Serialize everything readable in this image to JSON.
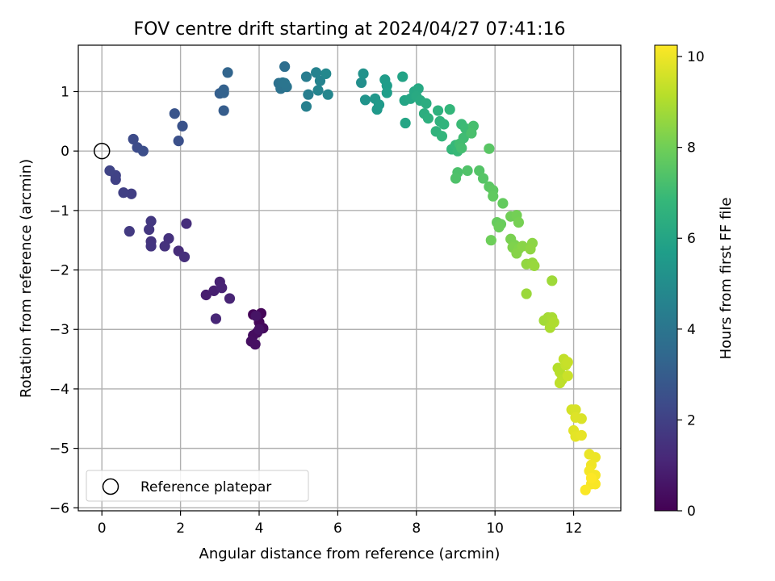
{
  "chart_data": {
    "type": "scatter",
    "title": "FOV centre drift starting at 2024/04/27 07:41:16",
    "xlabel": "Angular distance from reference (arcmin)",
    "ylabel": "Rotation from reference (arcmin)",
    "xlim": [
      -0.6,
      13.2
    ],
    "ylim": [
      -6.05,
      1.78
    ],
    "xticks": [
      0,
      2,
      4,
      6,
      8,
      10,
      12
    ],
    "yticks": [
      -6,
      -5,
      -4,
      -3,
      -2,
      -1,
      0,
      1
    ],
    "grid": true,
    "legend": {
      "position": "lower-left",
      "entries": [
        {
          "label": "Reference platepar",
          "marker": "open-circle"
        }
      ]
    },
    "reference_point": {
      "x": 0,
      "y": 0
    },
    "colorbar": {
      "label": "Hours from first FF file",
      "colormap": "viridis",
      "range": [
        0,
        10.25
      ],
      "ticks": [
        0,
        2,
        4,
        6,
        8,
        10
      ]
    },
    "colormap_stops": [
      "#440154",
      "#482878",
      "#3e4989",
      "#31688e",
      "#26828e",
      "#1f9e89",
      "#35b779",
      "#6ece58",
      "#b5de2b",
      "#fde725"
    ],
    "points": [
      [
        3.85,
        -2.75,
        0.1
      ],
      [
        4.05,
        -2.73,
        0.15
      ],
      [
        4.0,
        -2.88,
        0.2
      ],
      [
        4.1,
        -2.98,
        0.25
      ],
      [
        3.95,
        -3.05,
        0.3
      ],
      [
        3.85,
        -3.1,
        0.35
      ],
      [
        3.8,
        -3.2,
        0.4
      ],
      [
        3.9,
        -3.25,
        0.45
      ],
      [
        4.0,
        -3.0,
        0.5
      ],
      [
        3.92,
        -2.77,
        0.55
      ],
      [
        2.65,
        -2.42,
        0.85
      ],
      [
        2.85,
        -2.35,
        0.9
      ],
      [
        3.0,
        -2.2,
        0.95
      ],
      [
        3.05,
        -2.3,
        1.0
      ],
      [
        3.25,
        -2.48,
        1.05
      ],
      [
        2.9,
        -2.82,
        1.1
      ],
      [
        1.95,
        -1.68,
        1.3
      ],
      [
        2.15,
        -1.22,
        1.35
      ],
      [
        2.1,
        -1.78,
        1.4
      ],
      [
        1.7,
        -1.47,
        1.45
      ],
      [
        1.6,
        -1.6,
        1.5
      ],
      [
        1.25,
        -1.52,
        1.55
      ],
      [
        1.25,
        -1.6,
        1.6
      ],
      [
        1.2,
        -1.32,
        1.65
      ],
      [
        1.25,
        -1.18,
        1.7
      ],
      [
        0.7,
        -1.35,
        1.75
      ],
      [
        0.75,
        -0.72,
        1.9
      ],
      [
        0.55,
        -0.7,
        1.95
      ],
      [
        0.35,
        -0.48,
        2.0
      ],
      [
        0.35,
        -0.41,
        2.05
      ],
      [
        0.2,
        -0.33,
        2.1
      ],
      [
        0.8,
        0.2,
        2.35
      ],
      [
        0.9,
        0.06,
        2.4
      ],
      [
        1.05,
        0.0,
        2.45
      ],
      [
        1.95,
        0.17,
        2.55
      ],
      [
        2.05,
        0.42,
        2.6
      ],
      [
        1.85,
        0.63,
        2.7
      ],
      [
        3.1,
        0.68,
        3.0
      ],
      [
        3.0,
        0.97,
        3.1
      ],
      [
        3.1,
        1.03,
        3.15
      ],
      [
        3.1,
        0.98,
        3.2
      ],
      [
        3.2,
        1.32,
        3.3
      ],
      [
        4.65,
        1.42,
        3.7
      ],
      [
        4.5,
        1.14,
        3.8
      ],
      [
        4.55,
        1.05,
        3.85
      ],
      [
        4.6,
        1.15,
        3.9
      ],
      [
        4.7,
        1.08,
        3.95
      ],
      [
        4.65,
        1.14,
        4.0
      ],
      [
        5.2,
        1.25,
        4.3
      ],
      [
        5.25,
        0.95,
        4.4
      ],
      [
        5.2,
        0.75,
        4.45
      ],
      [
        5.45,
        1.32,
        4.55
      ],
      [
        5.55,
        1.18,
        4.6
      ],
      [
        5.5,
        1.02,
        4.65
      ],
      [
        5.75,
        0.95,
        4.7
      ],
      [
        5.7,
        1.3,
        4.8
      ],
      [
        6.6,
        1.15,
        5.1
      ],
      [
        6.65,
        1.3,
        5.2
      ],
      [
        6.7,
        0.86,
        5.3
      ],
      [
        6.95,
        0.88,
        5.4
      ],
      [
        7.0,
        0.7,
        5.5
      ],
      [
        7.05,
        0.78,
        5.55
      ],
      [
        7.2,
        1.2,
        5.6
      ],
      [
        7.25,
        1.1,
        5.65
      ],
      [
        7.25,
        0.98,
        5.7
      ],
      [
        7.65,
        1.25,
        5.9
      ],
      [
        7.7,
        0.85,
        5.95
      ],
      [
        7.72,
        0.47,
        6.0
      ],
      [
        7.85,
        0.88,
        6.05
      ],
      [
        7.95,
        1.0,
        6.1
      ],
      [
        8.05,
        1.05,
        6.15
      ],
      [
        8.0,
        0.92,
        6.2
      ],
      [
        8.1,
        0.85,
        6.25
      ],
      [
        8.25,
        0.8,
        6.35
      ],
      [
        8.2,
        0.63,
        6.4
      ],
      [
        8.3,
        0.55,
        6.45
      ],
      [
        8.55,
        0.68,
        6.5
      ],
      [
        8.6,
        0.5,
        6.55
      ],
      [
        8.5,
        0.33,
        6.6
      ],
      [
        8.7,
        0.45,
        6.65
      ],
      [
        8.65,
        0.25,
        6.7
      ],
      [
        8.85,
        0.7,
        6.75
      ],
      [
        8.9,
        0.03,
        6.8
      ],
      [
        9.0,
        0.1,
        6.85
      ],
      [
        9.05,
        0.0,
        6.9
      ],
      [
        9.15,
        0.45,
        6.95
      ],
      [
        9.25,
        0.38,
        7.0
      ],
      [
        9.2,
        0.22,
        7.05
      ],
      [
        9.1,
        0.12,
        7.1
      ],
      [
        9.15,
        0.05,
        7.15
      ],
      [
        9.45,
        0.42,
        7.2
      ],
      [
        9.4,
        0.3,
        7.25
      ],
      [
        9.05,
        -0.36,
        7.3
      ],
      [
        9.0,
        -0.46,
        7.35
      ],
      [
        9.3,
        -0.33,
        7.4
      ],
      [
        9.6,
        -0.33,
        7.45
      ],
      [
        9.7,
        -0.46,
        7.5
      ],
      [
        9.85,
        0.04,
        7.55
      ],
      [
        9.85,
        -0.6,
        7.6
      ],
      [
        9.95,
        -0.66,
        7.65
      ],
      [
        9.95,
        -0.76,
        7.7
      ],
      [
        10.2,
        -0.88,
        7.75
      ],
      [
        10.05,
        -1.2,
        7.8
      ],
      [
        10.15,
        -1.23,
        7.85
      ],
      [
        10.1,
        -1.28,
        7.9
      ],
      [
        9.9,
        -1.5,
        7.95
      ],
      [
        10.4,
        -1.1,
        8.0
      ],
      [
        10.55,
        -1.08,
        8.05
      ],
      [
        10.6,
        -1.2,
        8.1
      ],
      [
        10.4,
        -1.48,
        8.15
      ],
      [
        10.5,
        -1.58,
        8.2
      ],
      [
        10.45,
        -1.62,
        8.25
      ],
      [
        10.6,
        -1.65,
        8.3
      ],
      [
        10.55,
        -1.72,
        8.35
      ],
      [
        10.7,
        -1.6,
        8.4
      ],
      [
        10.95,
        -1.55,
        8.45
      ],
      [
        10.9,
        -1.65,
        8.5
      ],
      [
        10.8,
        -1.9,
        8.55
      ],
      [
        10.95,
        -1.88,
        8.6
      ],
      [
        11.0,
        -1.93,
        8.65
      ],
      [
        10.8,
        -2.4,
        8.7
      ],
      [
        11.45,
        -2.18,
        8.75
      ],
      [
        11.25,
        -2.85,
        8.8
      ],
      [
        11.35,
        -2.8,
        8.85
      ],
      [
        11.45,
        -2.8,
        8.9
      ],
      [
        11.4,
        -2.97,
        8.95
      ],
      [
        11.5,
        -2.88,
        9.0
      ],
      [
        11.6,
        -3.65,
        9.1
      ],
      [
        11.65,
        -3.72,
        9.15
      ],
      [
        11.7,
        -3.85,
        9.2
      ],
      [
        11.65,
        -3.9,
        9.25
      ],
      [
        11.75,
        -3.5,
        9.3
      ],
      [
        11.8,
        -3.6,
        9.35
      ],
      [
        11.85,
        -3.55,
        9.4
      ],
      [
        11.85,
        -3.78,
        9.45
      ],
      [
        11.95,
        -4.35,
        9.6
      ],
      [
        12.05,
        -4.35,
        9.65
      ],
      [
        12.2,
        -4.5,
        9.7
      ],
      [
        12.05,
        -4.48,
        9.75
      ],
      [
        12.0,
        -4.7,
        9.8
      ],
      [
        12.05,
        -4.8,
        9.85
      ],
      [
        12.2,
        -4.78,
        9.9
      ],
      [
        12.4,
        -5.1,
        9.95
      ],
      [
        12.55,
        -5.15,
        10.0
      ],
      [
        12.45,
        -5.28,
        10.05
      ],
      [
        12.4,
        -5.38,
        10.1
      ],
      [
        12.55,
        -5.45,
        10.12
      ],
      [
        12.45,
        -5.6,
        10.15
      ],
      [
        12.55,
        -5.6,
        10.18
      ],
      [
        12.3,
        -5.7,
        10.2
      ],
      [
        12.45,
        -5.5,
        10.25
      ]
    ]
  }
}
